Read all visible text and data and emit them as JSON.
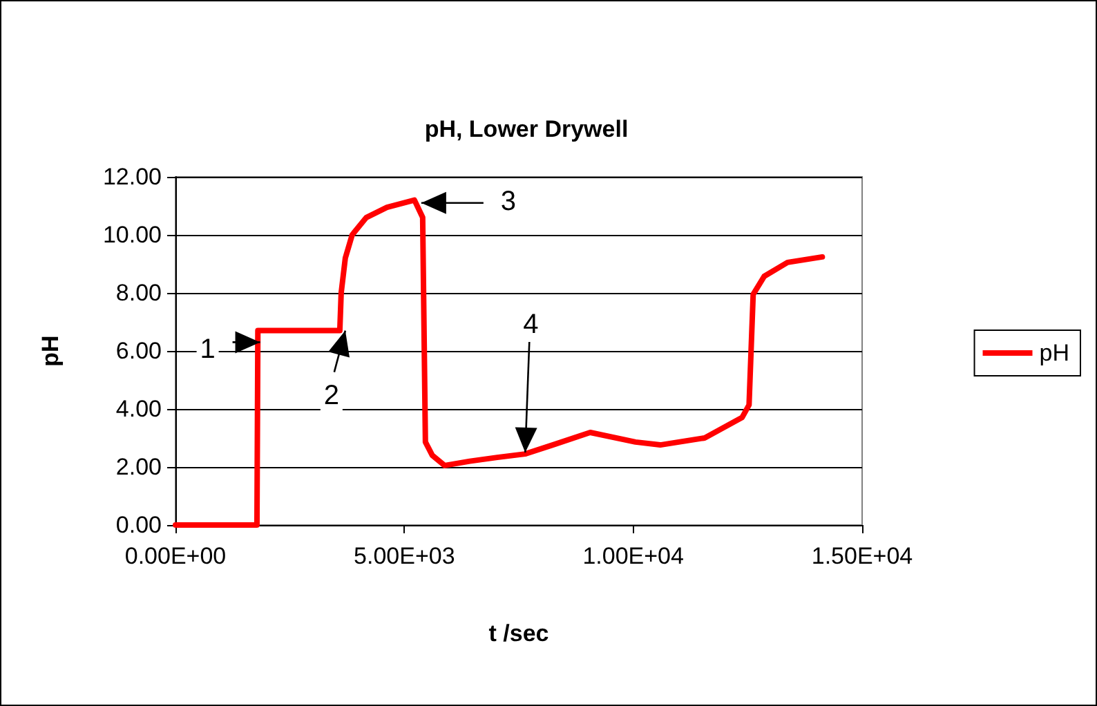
{
  "chart_data": {
    "type": "line",
    "title": "pH, Lower Drywell",
    "xlabel": "t /sec",
    "ylabel": "pH",
    "xlim": [
      0,
      15000
    ],
    "xticks": [
      {
        "value": 0,
        "label": "0.00E+00"
      },
      {
        "value": 5000,
        "label": "5.00E+03"
      },
      {
        "value": 10000,
        "label": "1.00E+04"
      },
      {
        "value": 15000,
        "label": "1.50E+04"
      }
    ],
    "ylim": [
      0,
      12
    ],
    "yticks": [
      {
        "value": 0,
        "label": "0.00"
      },
      {
        "value": 2,
        "label": "2.00"
      },
      {
        "value": 4,
        "label": "4.00"
      },
      {
        "value": 6,
        "label": "6.00"
      },
      {
        "value": 8,
        "label": "8.00"
      },
      {
        "value": 10,
        "label": "10.00"
      },
      {
        "value": 12,
        "label": "12.00"
      }
    ],
    "grid": "y",
    "legend": "right",
    "marker": "none",
    "line_style": "solid",
    "series": [
      {
        "name": "pH",
        "color": "#ff0000",
        "x": [
          0,
          1780,
          1800,
          3590,
          3620,
          3710,
          3860,
          4170,
          4620,
          5220,
          5400,
          5460,
          5610,
          5880,
          6430,
          7030,
          7640,
          8240,
          9060,
          10050,
          10590,
          11560,
          12380,
          12530,
          12620,
          12860,
          13370,
          14130
        ],
        "values": [
          0,
          0,
          6.7,
          6.7,
          8.0,
          9.2,
          10.0,
          10.6,
          10.95,
          11.2,
          10.6,
          2.86,
          2.4,
          2.05,
          2.2,
          2.33,
          2.45,
          2.76,
          3.19,
          2.86,
          2.76,
          3.0,
          3.71,
          4.14,
          7.95,
          8.57,
          9.05,
          9.24
        ]
      }
    ],
    "annotations": [
      {
        "text": "1",
        "x": 1850,
        "y": 6.3
      },
      {
        "text": "2",
        "x": 3710,
        "y": 6.7
      },
      {
        "text": "3",
        "x": 5370,
        "y": 11.1
      },
      {
        "text": "4",
        "x": 7640,
        "y": 2.5
      }
    ]
  }
}
